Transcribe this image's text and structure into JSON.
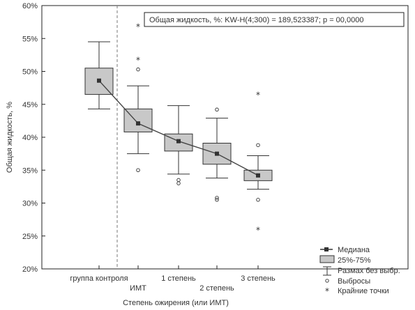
{
  "chart_data": {
    "type": "box",
    "title": "Общая жидкость, %:  KW-H(4;300) = 189,523387; p = 00,0000",
    "xlabel": "Степень ожирения (или ИМТ)",
    "ylabel": "Общая жидкость, %",
    "ylim": [
      20,
      60
    ],
    "yticks": [
      "20%",
      "25%",
      "30%",
      "35%",
      "40%",
      "45%",
      "50%",
      "55%",
      "60%"
    ],
    "yticks_values": [
      20,
      25,
      30,
      35,
      40,
      45,
      50,
      55,
      60
    ],
    "categories": [
      "группа контроля",
      "ИМТ",
      "1 степень",
      "2 степень",
      "3 степень"
    ],
    "medians": [
      48.6,
      42.1,
      39.4,
      37.5,
      34.2
    ],
    "q1": [
      46.5,
      40.8,
      37.9,
      35.9,
      33.4
    ],
    "q3": [
      50.5,
      44.3,
      40.5,
      39.1,
      35.0
    ],
    "whisker_low": [
      44.3,
      37.5,
      34.4,
      33.8,
      32.1
    ],
    "whisker_high": [
      54.5,
      47.8,
      44.8,
      42.9,
      37.2
    ],
    "outliers": [
      [],
      [
        50.3,
        35.0
      ],
      [
        33.5,
        33.0
      ],
      [
        44.2,
        30.8,
        30.5
      ],
      [
        38.8,
        30.5
      ]
    ],
    "extremes": [
      [],
      [
        56.9,
        51.8
      ],
      [],
      [],
      [
        46.5,
        26.0
      ]
    ],
    "legend": {
      "position": "bottom-right",
      "items": [
        "Медиана",
        "25%-75%",
        "Размах без выбр.",
        "Выбросы",
        "Крайние точки"
      ]
    },
    "grid": false,
    "colors": {
      "box": "#c8c8c8",
      "line": "#333333",
      "axis": "#222222"
    }
  }
}
